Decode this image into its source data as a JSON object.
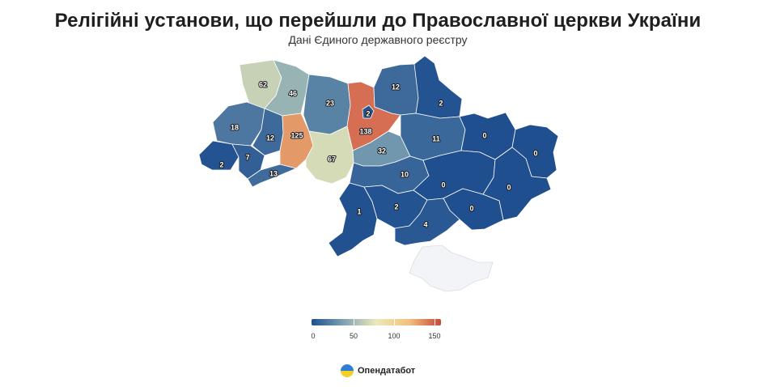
{
  "title": "Релігійні установи, що перейшли до Православної церкви України",
  "subtitle": "Дані Єдиного державного реєстру",
  "brand": {
    "name": "Опендатабот"
  },
  "legend": {
    "stops": [
      {
        "value": 0,
        "label": "0"
      },
      {
        "value": 50,
        "label": "50"
      },
      {
        "value": 100,
        "label": "100"
      },
      {
        "value": 150,
        "label": "150"
      }
    ],
    "colors": [
      "#1f4f8f",
      "#7ea3b3",
      "#ece9b8",
      "#f2c27e",
      "#c8473d"
    ]
  },
  "chart_data": {
    "type": "choropleth",
    "value_range": [
      0,
      150
    ],
    "regions": [
      {
        "id": "volyn",
        "value": 62,
        "label": "62"
      },
      {
        "id": "rivne",
        "value": 46,
        "label": "46"
      },
      {
        "id": "zhytomyr",
        "value": 23,
        "label": "23"
      },
      {
        "id": "kyiv-oblast",
        "value": 138,
        "label": "138"
      },
      {
        "id": "kyiv-city",
        "value": 2,
        "label": "2"
      },
      {
        "id": "chernihiv",
        "value": 12,
        "label": "12"
      },
      {
        "id": "sumy",
        "value": 2,
        "label": "2"
      },
      {
        "id": "lviv",
        "value": 18,
        "label": "18"
      },
      {
        "id": "ternopil",
        "value": 12,
        "label": "12"
      },
      {
        "id": "khmelnytskyi",
        "value": 125,
        "label": "125"
      },
      {
        "id": "vinnytsia",
        "value": 67,
        "label": "67"
      },
      {
        "id": "cherkasy",
        "value": 32,
        "label": "32"
      },
      {
        "id": "poltava",
        "value": 11,
        "label": "11"
      },
      {
        "id": "kharkiv",
        "value": 0,
        "label": "0"
      },
      {
        "id": "luhansk",
        "value": 0,
        "label": "0"
      },
      {
        "id": "zakarpattia",
        "value": 2,
        "label": "2"
      },
      {
        "id": "ivano-frankivsk",
        "value": 7,
        "label": "7"
      },
      {
        "id": "chernivtsi",
        "value": 13,
        "label": "13"
      },
      {
        "id": "kirovohrad",
        "value": 10,
        "label": "10"
      },
      {
        "id": "dnipropetrovsk",
        "value": 0,
        "label": "0"
      },
      {
        "id": "donetsk",
        "value": 0,
        "label": "0"
      },
      {
        "id": "odesa",
        "value": 1,
        "label": "1"
      },
      {
        "id": "mykolaiv",
        "value": 2,
        "label": "2"
      },
      {
        "id": "zaporizhzhia",
        "value": 0,
        "label": "0"
      },
      {
        "id": "kherson",
        "value": 4,
        "label": "4"
      },
      {
        "id": "crimea",
        "value": null,
        "label": ""
      }
    ]
  }
}
